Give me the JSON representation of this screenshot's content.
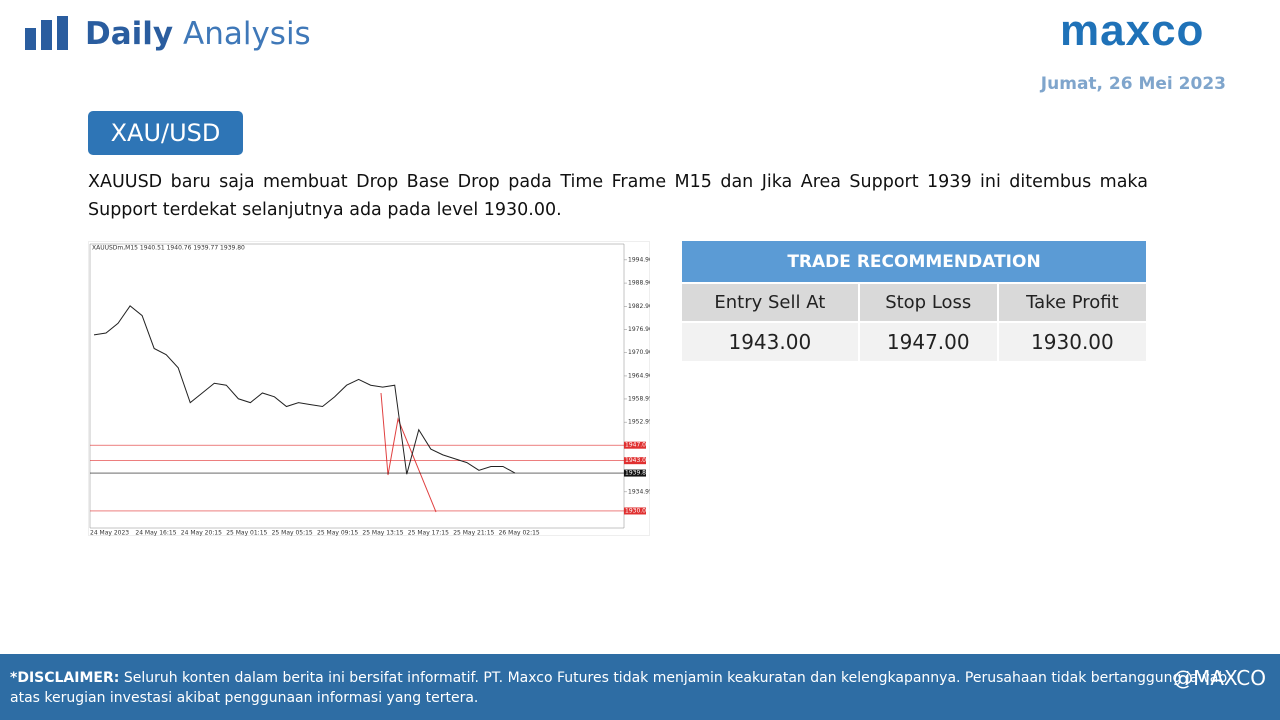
{
  "header": {
    "title_bold": "Daily",
    "title_light": "Analysis",
    "logo": "maxco",
    "date": "Jumat, 26 Mei 2023"
  },
  "pair": "XAU/USD",
  "description": "XAUUSD baru saja membuat Drop Base Drop pada Time Frame M15 dan Jika Area Support 1939 ini ditembus maka Support terdekat selanjutnya ada pada level 1930.00.",
  "price_chart": {
    "type": "line",
    "title": "XAUUSDm,M15  1940.51 1940.76 1939.77 1939.80",
    "categories": [
      "24 May 2023",
      "24 May 16:15",
      "24 May 20:15",
      "25 May 01:15",
      "25 May 05:15",
      "25 May 09:15",
      "25 May 13:15",
      "25 May 17:15",
      "25 May 21:15",
      "26 May 02:15"
    ],
    "values": [
      1975.5,
      1976.0,
      1978.5,
      1983.0,
      1980.5,
      1972.0,
      1970.4,
      1967.0,
      1958.0,
      1960.5,
      1963.0,
      1962.5,
      1959.0,
      1958.0,
      1960.5,
      1959.5,
      1957.0,
      1958.0,
      1957.5,
      1957.0,
      1959.5,
      1962.5,
      1964.0,
      1962.5,
      1962.0,
      1962.5,
      1939.5,
      1951.0,
      1946.0,
      1944.5,
      1943.5,
      1942.5,
      1940.5,
      1941.5,
      1941.5,
      1939.8
    ],
    "color": "#222222",
    "ylim": [
      1925.6,
      1999.0
    ],
    "yticks": [
      {
        "value": 1994.9,
        "label": "1994.90"
      },
      {
        "value": 1988.9,
        "label": "1988.90"
      },
      {
        "value": 1982.9,
        "label": "1982.90"
      },
      {
        "value": 1976.9,
        "label": "1976.90"
      },
      {
        "value": 1970.9,
        "label": "1970.90"
      },
      {
        "value": 1964.9,
        "label": "1964.90"
      },
      1958.95,
      1952.95,
      1934.95
    ],
    "levels": [
      {
        "value": 1947,
        "label": "1947.00",
        "color": "#e03030"
      },
      {
        "value": 1943,
        "label": "1943.00",
        "color": "#e03030"
      },
      {
        "value": 1939.8,
        "label": "1939.80",
        "color": "#111111"
      },
      {
        "value": 1930,
        "label": "1930.00",
        "color": "#e03030"
      }
    ]
  },
  "table": {
    "title": "TRADE RECOMMENDATION",
    "columns": [
      "Entry Sell At",
      "Stop Loss",
      "Take Profit"
    ],
    "rows": [
      [
        "1943.00",
        "1947.00",
        "1930.00"
      ]
    ]
  },
  "footer": {
    "disclaimer_label": "*DISCLAIMER:",
    "disclaimer": "Seluruh konten dalam berita ini bersifat informatif. PT. Maxco Futures tidak menjamin keakuratan dan kelengkapannya. Perusahaan tidak bertanggung jawab atas kerugian investasi akibat penggunaan informasi yang tertera.",
    "social": "@MAXCO"
  }
}
